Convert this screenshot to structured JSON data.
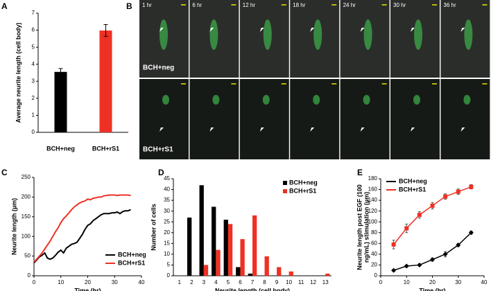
{
  "images": {
    "panel": "B",
    "times": [
      "1 hr",
      "6 hr",
      "12 hr",
      "18 hr",
      "24 hr",
      "30 hr",
      "36 hr"
    ],
    "rows": [
      "BCH+neg",
      "BCH+rS1"
    ]
  },
  "chart_data": [
    {
      "type": "bar",
      "panel": "A",
      "ylabel": "Average neurite length (cell body)",
      "categories": [
        "BCH+neg",
        "BCH+rS1"
      ],
      "values": [
        3.55,
        5.98
      ],
      "errors": [
        0.2,
        0.35
      ],
      "colors": [
        "#000000",
        "#ee3124"
      ],
      "ylim": [
        0,
        7
      ],
      "yticks": [
        0,
        1,
        2,
        3,
        4,
        5,
        6,
        7
      ]
    },
    {
      "type": "line",
      "panel": "C",
      "xlabel": "Time (hr)",
      "ylabel": "Neurite length (µm)",
      "xlim": [
        0,
        40
      ],
      "xticks": [
        0,
        10,
        20,
        30,
        40
      ],
      "ylim": [
        0,
        250
      ],
      "yticks": [
        0,
        50,
        100,
        150,
        200,
        250
      ],
      "legend": "lower right",
      "x": [
        0,
        1,
        2,
        3,
        4,
        5,
        6,
        7,
        8,
        9,
        10,
        11,
        12,
        13,
        14,
        15,
        16,
        17,
        18,
        19,
        20,
        21,
        22,
        23,
        24,
        25,
        26,
        27,
        28,
        29,
        30,
        31,
        32,
        33,
        34,
        35,
        36
      ],
      "series": [
        {
          "name": "BCH+neg",
          "color": "#000000",
          "values": [
            33,
            40,
            48,
            52,
            58,
            45,
            42,
            45,
            52,
            60,
            65,
            58,
            70,
            75,
            80,
            82,
            85,
            95,
            105,
            118,
            128,
            132,
            140,
            145,
            150,
            155,
            158,
            158,
            158,
            160,
            160,
            162,
            158,
            163,
            165,
            165,
            168
          ]
        },
        {
          "name": "BCH+rS1",
          "color": "#ee3124",
          "values": [
            35,
            42,
            50,
            58,
            68,
            78,
            88,
            100,
            112,
            122,
            135,
            145,
            152,
            160,
            168,
            175,
            180,
            185,
            188,
            190,
            195,
            193,
            197,
            198,
            200,
            200,
            203,
            204,
            205,
            205,
            205,
            204,
            205,
            205,
            205,
            205,
            204
          ]
        }
      ]
    },
    {
      "type": "grouped-bar",
      "panel": "D",
      "xlabel": "Neurite length (cell body)",
      "ylabel": "Number of cells",
      "ylim": [
        0,
        45
      ],
      "yticks": [
        0,
        5,
        10,
        15,
        20,
        25,
        30,
        35,
        40,
        45
      ],
      "legend": "upper right",
      "categories": [
        "1",
        "2",
        "3",
        "4",
        "5",
        "6",
        "7",
        "8",
        "9",
        "10",
        "11",
        "12",
        "13"
      ],
      "series": [
        {
          "name": "BCH+neg",
          "color": "#000000",
          "values": [
            0,
            27,
            42,
            32,
            26,
            4,
            1,
            0,
            0,
            0,
            0,
            0,
            0
          ]
        },
        {
          "name": "BCH+rS1",
          "color": "#ee3124",
          "values": [
            0,
            0,
            5,
            12,
            24,
            17,
            28,
            9,
            4,
            2,
            0,
            0,
            1
          ]
        }
      ]
    },
    {
      "type": "line-error",
      "panel": "E",
      "xlabel": "Time (hr)",
      "ylabel": [
        "Neurite length post EGF (100",
        "ng/mL) stimulation (µm)"
      ],
      "xlim": [
        0,
        40
      ],
      "xticks": [
        0,
        10,
        20,
        30,
        40
      ],
      "ylim": [
        0,
        180
      ],
      "yticks": [
        0,
        20,
        40,
        60,
        80,
        100,
        120,
        140,
        160,
        180
      ],
      "legend": "upper left",
      "x": [
        5,
        10,
        15,
        20,
        25,
        30,
        35
      ],
      "series": [
        {
          "name": "BCH+neg",
          "color": "#000000",
          "marker": "diamond",
          "values": [
            10,
            18,
            20,
            30,
            40,
            57,
            80
          ],
          "errors": [
            2,
            2,
            2,
            3,
            5,
            3,
            3
          ]
        },
        {
          "name": "BCH+rS1",
          "color": "#ee3124",
          "marker": "square",
          "values": [
            58,
            88,
            113,
            130,
            147,
            156,
            165
          ],
          "errors": [
            8,
            8,
            6,
            6,
            5,
            5,
            4
          ]
        }
      ]
    }
  ]
}
